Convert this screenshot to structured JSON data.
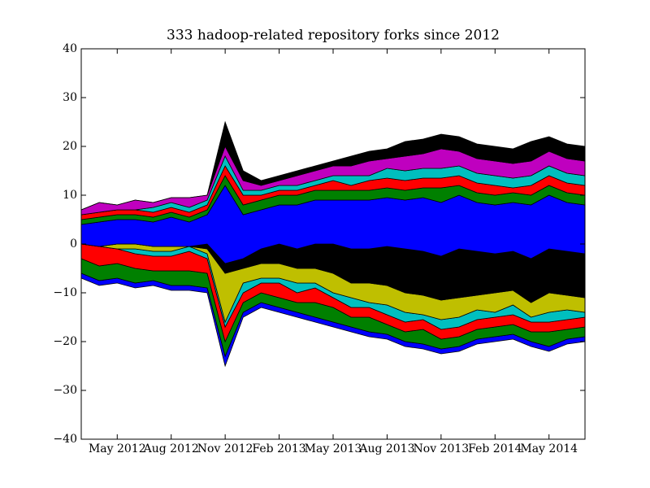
{
  "chart_data": {
    "type": "stream",
    "title": "333 hadoop-related repository forks since 2012",
    "baseline": "sym",
    "x": [
      "2012-03",
      "2012-04",
      "2012-05",
      "2012-06",
      "2012-07",
      "2012-08",
      "2012-09",
      "2012-10",
      "2012-11",
      "2012-12",
      "2013-01",
      "2013-02",
      "2013-03",
      "2013-04",
      "2013-05",
      "2013-06",
      "2013-07",
      "2013-08",
      "2013-09",
      "2013-10",
      "2013-11",
      "2013-12",
      "2014-01",
      "2014-02",
      "2014-03",
      "2014-04",
      "2014-05",
      "2014-06",
      "2014-07"
    ],
    "series": [
      {
        "color": "#0000ff",
        "values": [
          1,
          1,
          1,
          1,
          1,
          1,
          1,
          1,
          2,
          1,
          1,
          1,
          1,
          1,
          1,
          1,
          1,
          1,
          1,
          1,
          1,
          1,
          1,
          1,
          1,
          1,
          1,
          1,
          1
        ]
      },
      {
        "color": "#008000",
        "values": [
          3,
          3,
          3,
          3,
          2,
          3,
          3,
          3,
          3,
          2,
          2,
          2,
          2,
          3,
          3,
          2,
          3,
          2,
          2,
          3,
          2,
          2,
          2,
          2,
          2,
          2,
          3,
          2,
          2
        ]
      },
      {
        "color": "#ff0000",
        "values": [
          3,
          4,
          3,
          3,
          3,
          3,
          4,
          3,
          3,
          2,
          2,
          3,
          2,
          3,
          2,
          2,
          2,
          2,
          2,
          2,
          2,
          2,
          2,
          2,
          2,
          2,
          2,
          2,
          2
        ]
      },
      {
        "color": "#00bfbf",
        "values": [
          0,
          0,
          0,
          1,
          1,
          1,
          1,
          1,
          1,
          2,
          1,
          1,
          2,
          1,
          1,
          2,
          1,
          2,
          2,
          1,
          2,
          2,
          2,
          1,
          2,
          1,
          2,
          2,
          1
        ]
      },
      {
        "color": "#bfbf00",
        "values": [
          0,
          0,
          1,
          1,
          1,
          1,
          0,
          1,
          10,
          3,
          3,
          3,
          3,
          3,
          4,
          3,
          4,
          4,
          4,
          4,
          4,
          4,
          3,
          4,
          3,
          3,
          4,
          3,
          3
        ]
      },
      {
        "color": "#000000",
        "values": [
          0,
          0,
          0,
          0,
          0,
          0,
          0,
          1,
          2,
          2,
          3,
          4,
          4,
          5,
          6,
          7,
          7,
          8,
          9,
          9,
          9,
          10,
          9,
          8,
          8,
          9,
          9,
          9,
          9
        ]
      },
      {
        "color": "#0000ff",
        "values": [
          4,
          5,
          5,
          5,
          5,
          6,
          5,
          6,
          16,
          9,
          8,
          8,
          9,
          9,
          9,
          10,
          10,
          10,
          10,
          11,
          11,
          11,
          10,
          10,
          10,
          11,
          11,
          10,
          10
        ]
      },
      {
        "color": "#008000",
        "values": [
          1,
          1,
          1,
          1,
          1,
          1,
          1,
          1,
          2,
          2,
          2,
          2,
          2,
          2,
          2,
          2,
          2,
          2,
          2,
          2,
          3,
          2,
          2,
          2,
          2,
          2,
          2,
          2,
          2
        ]
      },
      {
        "color": "#ff0000",
        "values": [
          1,
          1,
          1,
          1,
          1,
          1,
          1,
          1,
          2,
          2,
          1,
          1,
          1,
          1,
          2,
          1,
          2,
          2,
          2,
          2,
          2,
          2,
          2,
          2,
          1,
          2,
          2,
          2,
          2
        ]
      },
      {
        "color": "#00bfbf",
        "values": [
          0,
          0,
          0,
          0,
          1,
          1,
          1,
          1,
          2,
          1,
          1,
          1,
          1,
          1,
          1,
          2,
          1,
          2,
          2,
          2,
          2,
          2,
          2,
          2,
          2,
          2,
          2,
          2,
          2
        ]
      },
      {
        "color": "#bf00bf",
        "values": [
          1,
          2,
          1,
          2,
          1,
          1,
          2,
          1,
          2,
          2,
          1,
          1,
          2,
          2,
          2,
          2,
          3,
          2,
          3,
          3,
          4,
          3,
          3,
          3,
          3,
          3,
          3,
          3,
          3
        ]
      },
      {
        "color": "#000000",
        "values": [
          0,
          0,
          0,
          0,
          0,
          0,
          0,
          0,
          5,
          2,
          1,
          1,
          1,
          1,
          1,
          2,
          2,
          2,
          3,
          3,
          3,
          3,
          3,
          3,
          3,
          4,
          3,
          3,
          3
        ]
      }
    ],
    "xlim": [
      "2012-03",
      "2014-07"
    ],
    "xticks": [
      {
        "value": "2012-05",
        "label": "May 2012"
      },
      {
        "value": "2012-08",
        "label": "Aug 2012"
      },
      {
        "value": "2012-11",
        "label": "Nov 2012"
      },
      {
        "value": "2013-02",
        "label": "Feb 2013"
      },
      {
        "value": "2013-05",
        "label": "May 2013"
      },
      {
        "value": "2013-08",
        "label": "Aug 2013"
      },
      {
        "value": "2013-11",
        "label": "Nov 2013"
      },
      {
        "value": "2014-02",
        "label": "Feb 2014"
      },
      {
        "value": "2014-05",
        "label": "May 2014"
      }
    ],
    "ylim": [
      -40,
      40
    ],
    "yticks": [
      {
        "value": -40,
        "label": "−40"
      },
      {
        "value": -30,
        "label": "−30"
      },
      {
        "value": -20,
        "label": "−20"
      },
      {
        "value": -10,
        "label": "−10"
      },
      0,
      10,
      20,
      30,
      40
    ]
  }
}
